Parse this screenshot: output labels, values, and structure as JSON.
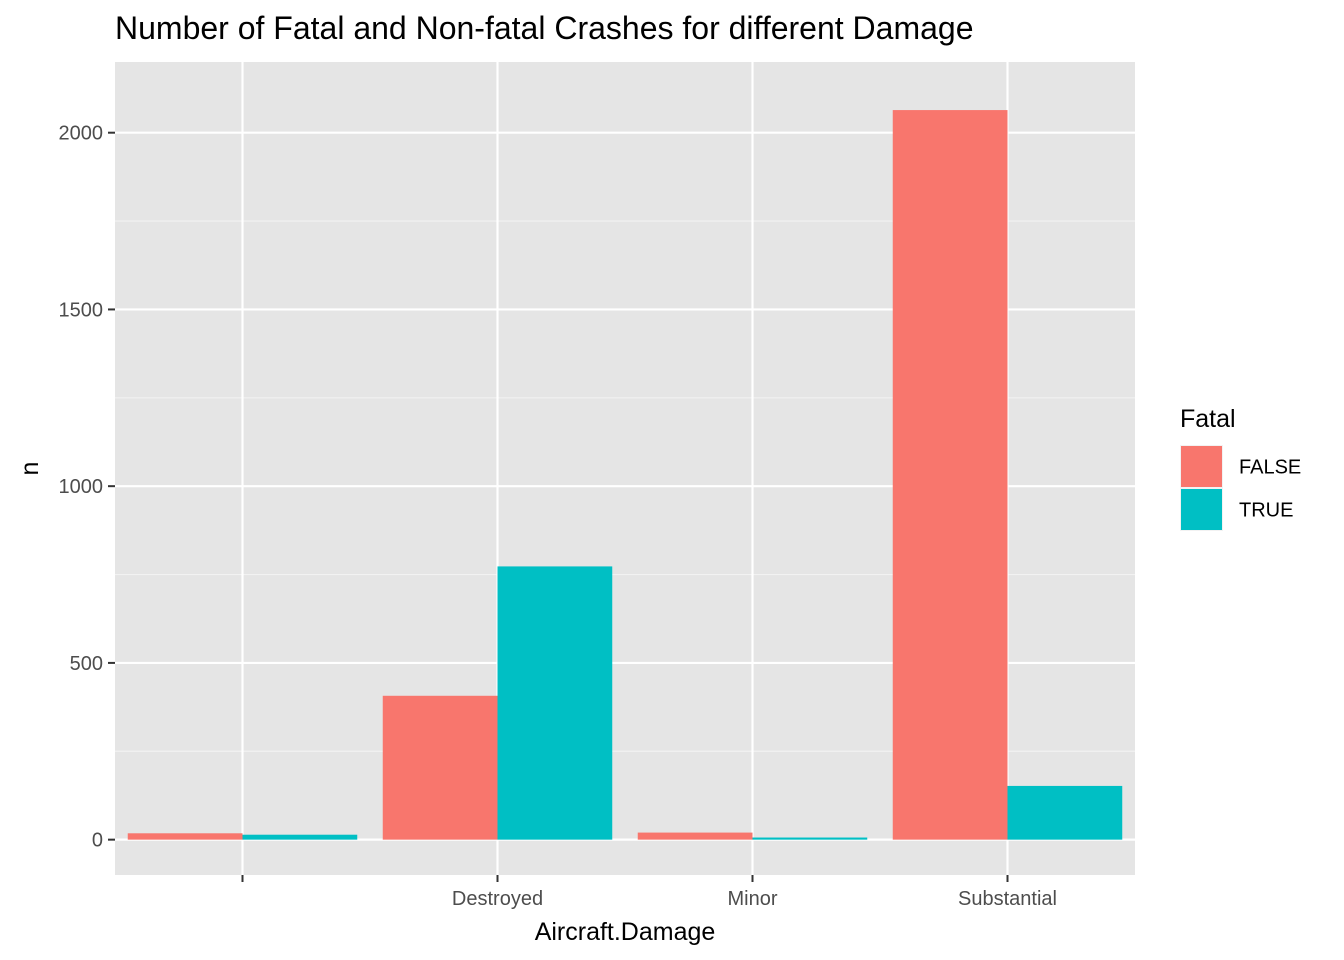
{
  "chart_data": {
    "type": "bar",
    "title": "Number of Fatal and Non-fatal Crashes for different Damage",
    "xlabel": "Aircraft.Damage",
    "ylabel": "n",
    "categories": [
      "",
      "Destroyed",
      "Minor",
      "Substantial"
    ],
    "series": [
      {
        "name": "FALSE",
        "values": [
          18,
          407,
          20,
          2064
        ],
        "color": "#f8766d"
      },
      {
        "name": "TRUE",
        "values": [
          14,
          773,
          6,
          152
        ],
        "color": "#00bfc4"
      }
    ],
    "ylim": [
      -100,
      2200
    ],
    "yticks": [
      0,
      500,
      1000,
      1500,
      2000
    ],
    "grid": true,
    "legend": {
      "title": "Fatal",
      "position": "right"
    },
    "panel_background": "#ebebeb"
  }
}
